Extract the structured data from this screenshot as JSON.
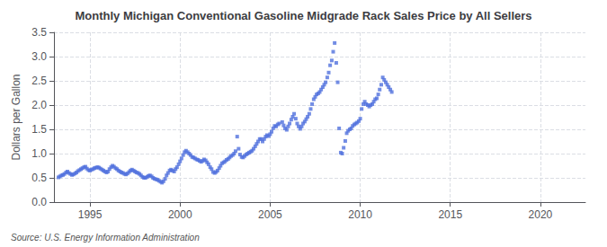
{
  "chart_data": {
    "type": "scatter",
    "title": "Monthly Michigan Conventional Gasoline Midgrade Rack Sales Price by All Sellers",
    "ylabel": "Dollars per Gallon",
    "annotations": [
      "Source: U.S. Energy Information Administration"
    ],
    "marker": "square",
    "grid": true,
    "xlim": [
      1993.0,
      2022.5
    ],
    "xticks": [
      1995,
      2000,
      2005,
      2010,
      2015,
      2020
    ],
    "ylim": [
      0.0,
      3.5
    ],
    "yticks": [
      {
        "value": 0.0,
        "label": "0.0"
      },
      0.5,
      {
        "value": 1.0,
        "label": "1.0"
      },
      1.5,
      {
        "value": 2.0,
        "label": "2.0"
      },
      2.5,
      {
        "value": 3.0,
        "label": "3.0"
      },
      3.5
    ],
    "x": [
      1993.25,
      1993.33,
      1993.42,
      1993.5,
      1993.58,
      1993.67,
      1993.75,
      1993.83,
      1993.92,
      1994.0,
      1994.08,
      1994.17,
      1994.25,
      1994.33,
      1994.42,
      1994.5,
      1994.58,
      1994.67,
      1994.75,
      1994.83,
      1994.92,
      1995.0,
      1995.08,
      1995.17,
      1995.25,
      1995.33,
      1995.42,
      1995.5,
      1995.58,
      1995.67,
      1995.75,
      1995.83,
      1995.92,
      1996.0,
      1996.08,
      1996.17,
      1996.25,
      1996.33,
      1996.42,
      1996.5,
      1996.58,
      1996.67,
      1996.75,
      1996.83,
      1996.92,
      1997.0,
      1997.08,
      1997.17,
      1997.25,
      1997.33,
      1997.42,
      1997.5,
      1997.58,
      1997.67,
      1997.75,
      1997.83,
      1997.92,
      1998.0,
      1998.08,
      1998.17,
      1998.25,
      1998.33,
      1998.42,
      1998.5,
      1998.58,
      1998.67,
      1998.75,
      1998.83,
      1998.92,
      1999.0,
      1999.08,
      1999.17,
      1999.25,
      1999.33,
      1999.42,
      1999.5,
      1999.58,
      1999.67,
      1999.75,
      1999.83,
      1999.92,
      2000.0,
      2000.08,
      2000.17,
      2000.25,
      2000.33,
      2000.42,
      2000.5,
      2000.58,
      2000.67,
      2000.75,
      2000.83,
      2000.92,
      2001.0,
      2001.08,
      2001.17,
      2001.25,
      2001.33,
      2001.42,
      2001.5,
      2001.58,
      2001.67,
      2001.75,
      2001.83,
      2001.92,
      2002.0,
      2002.08,
      2002.17,
      2002.25,
      2002.33,
      2002.42,
      2002.5,
      2002.58,
      2002.67,
      2002.75,
      2002.83,
      2002.92,
      2003.0,
      2003.08,
      2003.17,
      2003.25,
      2003.33,
      2003.42,
      2003.5,
      2003.58,
      2003.67,
      2003.75,
      2003.83,
      2003.92,
      2004.0,
      2004.08,
      2004.17,
      2004.25,
      2004.33,
      2004.42,
      2004.5,
      2004.58,
      2004.67,
      2004.75,
      2004.83,
      2004.92,
      2005.0,
      2005.08,
      2005.17,
      2005.25,
      2005.33,
      2005.42,
      2005.5,
      2005.67,
      2005.75,
      2005.83,
      2005.92,
      2006.0,
      2006.08,
      2006.17,
      2006.25,
      2006.33,
      2006.42,
      2006.5,
      2006.58,
      2006.67,
      2006.75,
      2006.83,
      2006.92,
      2007.0,
      2007.08,
      2007.17,
      2007.25,
      2007.33,
      2007.42,
      2007.5,
      2007.58,
      2007.67,
      2007.75,
      2007.83,
      2007.92,
      2008.0,
      2008.08,
      2008.17,
      2008.25,
      2008.33,
      2008.42,
      2008.5,
      2008.58,
      2008.67,
      2008.75,
      2008.83,
      2008.92,
      2009.0,
      2009.08,
      2009.17,
      2009.25,
      2009.33,
      2009.42,
      2009.5,
      2009.58,
      2009.67,
      2009.75,
      2009.83,
      2009.92,
      2010.0,
      2010.08,
      2010.17,
      2010.25,
      2010.33,
      2010.42,
      2010.5,
      2010.58,
      2010.67,
      2010.75,
      2010.83,
      2010.92,
      2011.0,
      2011.08,
      2011.17,
      2011.25,
      2011.33,
      2011.42,
      2011.5,
      2011.58,
      2011.67,
      2011.75
    ],
    "values": [
      0.51,
      0.53,
      0.55,
      0.56,
      0.58,
      0.61,
      0.63,
      0.6,
      0.58,
      0.56,
      0.57,
      0.59,
      0.61,
      0.64,
      0.66,
      0.68,
      0.7,
      0.72,
      0.73,
      0.69,
      0.66,
      0.65,
      0.67,
      0.68,
      0.7,
      0.71,
      0.72,
      0.71,
      0.69,
      0.67,
      0.65,
      0.63,
      0.61,
      0.63,
      0.68,
      0.72,
      0.75,
      0.73,
      0.7,
      0.68,
      0.65,
      0.63,
      0.61,
      0.6,
      0.58,
      0.57,
      0.59,
      0.62,
      0.65,
      0.67,
      0.65,
      0.63,
      0.61,
      0.6,
      0.58,
      0.55,
      0.52,
      0.5,
      0.5,
      0.52,
      0.54,
      0.55,
      0.53,
      0.5,
      0.48,
      0.47,
      0.46,
      0.44,
      0.42,
      0.4,
      0.43,
      0.48,
      0.55,
      0.6,
      0.65,
      0.67,
      0.65,
      0.63,
      0.68,
      0.72,
      0.78,
      0.84,
      0.9,
      0.97,
      1.03,
      1.06,
      1.03,
      1.0,
      0.97,
      0.93,
      0.92,
      0.9,
      0.88,
      0.87,
      0.85,
      0.83,
      0.85,
      0.88,
      0.86,
      0.82,
      0.78,
      0.72,
      0.68,
      0.62,
      0.6,
      0.62,
      0.65,
      0.7,
      0.75,
      0.8,
      0.82,
      0.84,
      0.87,
      0.89,
      0.92,
      0.95,
      0.97,
      1.0,
      1.05,
      1.35,
      1.1,
      0.98,
      0.93,
      0.92,
      0.95,
      0.98,
      1.0,
      1.02,
      1.04,
      1.06,
      1.1,
      1.15,
      1.2,
      1.25,
      1.3,
      1.3,
      1.25,
      1.3,
      1.35,
      1.38,
      1.36,
      1.4,
      1.45,
      1.52,
      1.57,
      1.56,
      1.6,
      1.62,
      1.65,
      1.58,
      1.52,
      1.49,
      1.56,
      1.62,
      1.7,
      1.76,
      1.82,
      1.72,
      1.62,
      1.56,
      1.51,
      1.56,
      1.62,
      1.66,
      1.71,
      1.76,
      1.82,
      1.92,
      2.02,
      2.12,
      2.17,
      2.22,
      2.24,
      2.27,
      2.32,
      2.37,
      2.42,
      2.47,
      2.57,
      2.67,
      2.82,
      2.92,
      3.1,
      3.28,
      2.87,
      2.47,
      1.52,
      1.02,
      1.0,
      1.12,
      1.26,
      1.42,
      1.47,
      1.5,
      1.52,
      1.57,
      1.6,
      1.62,
      1.64,
      1.67,
      1.72,
      1.92,
      2.02,
      2.07,
      2.02,
      2.0,
      1.97,
      2.0,
      2.02,
      2.07,
      2.12,
      2.14,
      2.22,
      2.32,
      2.42,
      2.57,
      2.52,
      2.47,
      2.42,
      2.37,
      2.32,
      2.27
    ]
  }
}
